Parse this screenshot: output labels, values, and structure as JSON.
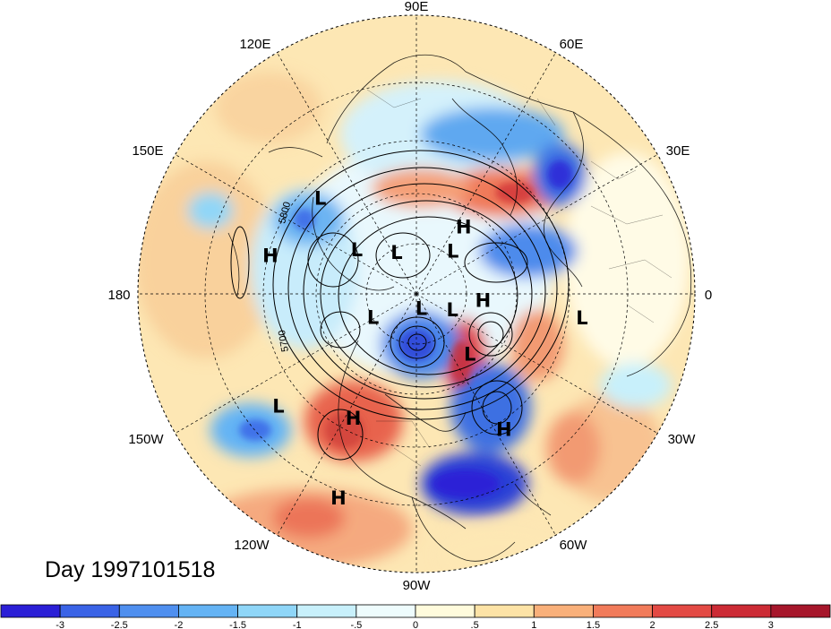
{
  "title": "Day 1997101518",
  "longitude_labels": [
    "90E",
    "60E",
    "30E",
    "0",
    "30W",
    "60W",
    "90W",
    "120W",
    "150W",
    "180",
    "150E",
    "120E"
  ],
  "contour_labels": [
    "5800",
    "5700"
  ],
  "pressure_systems": [
    {
      "type": "H",
      "lat": 57,
      "lon": 55
    },
    {
      "type": "L",
      "lat": 38,
      "lon": 135
    },
    {
      "type": "H",
      "lat": 33,
      "lon": 165
    },
    {
      "type": "L",
      "lat": 60,
      "lon": 143
    },
    {
      "type": "L",
      "lat": 71,
      "lon": 115
    },
    {
      "type": "L",
      "lat": 67,
      "lon": 50
    },
    {
      "type": "L",
      "lat": 70,
      "lon": -152
    },
    {
      "type": "L",
      "lat": 84,
      "lon": -70
    },
    {
      "type": "L",
      "lat": 74,
      "lon": -23
    },
    {
      "type": "H",
      "lat": 63,
      "lon": -5
    },
    {
      "type": "L",
      "lat": 28,
      "lon": -8
    },
    {
      "type": "L",
      "lat": 58,
      "lon": -48
    },
    {
      "type": "H",
      "lat": 37,
      "lon": -117
    },
    {
      "type": "L",
      "lat": 25,
      "lon": -141
    },
    {
      "type": "H",
      "lat": 30,
      "lon": -57
    },
    {
      "type": "H",
      "lat": 14,
      "lon": -111
    }
  ],
  "colorbar": {
    "labels": [
      "-3",
      "-2.5",
      "-2",
      "-1.5",
      "-1",
      "-.5",
      "0",
      ".5",
      "1",
      "1.5",
      "2",
      "2.5",
      "3"
    ],
    "colors": [
      "#2b1fd6",
      "#3a63e6",
      "#4f8fef",
      "#64b3f4",
      "#8fd6f8",
      "#c8f0fb",
      "#eefcfd",
      "#fffbdc",
      "#fde3a6",
      "#f9b07a",
      "#f17b5a",
      "#e34a44",
      "#cc2b35",
      "#a6162b"
    ]
  },
  "colors": {
    "land_outline": "#000000",
    "grid": "#000000",
    "background": "#ffffff"
  }
}
